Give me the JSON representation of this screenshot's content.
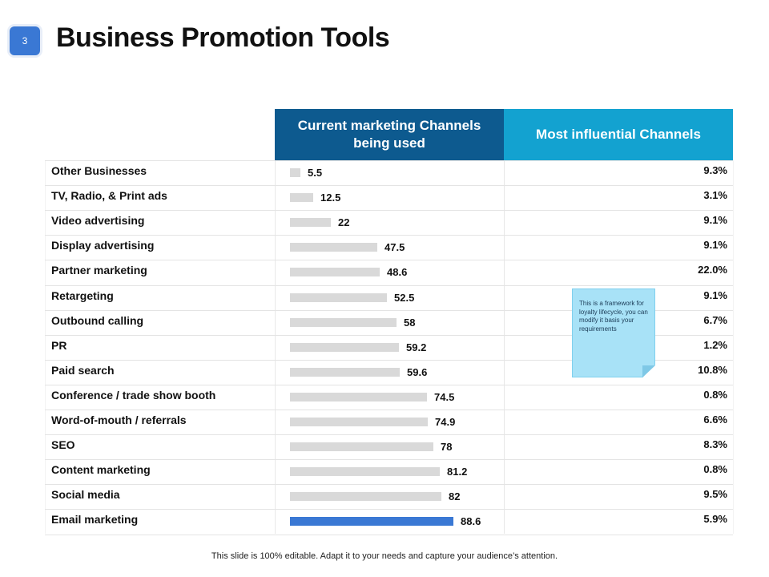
{
  "slide": {
    "page_number": "3",
    "title": "Business Promotion Tools",
    "footer": "This slide is 100% editable. Adapt it to your needs and capture your audience’s attention."
  },
  "table": {
    "header_current": "Current marketing Channels being used",
    "header_influential": "Most influential Channels"
  },
  "note": {
    "text": "This is a framework for loyalty lifecycle, you can modify it basis your requirements",
    "color": "#a8e2f7"
  },
  "colors": {
    "header_dark": "#0d5a8f",
    "header_light": "#13a2d0",
    "bar_default": "#d9d9d9",
    "bar_highlight": "#3a78d4"
  },
  "chart_data": {
    "type": "bar",
    "orientation": "horizontal",
    "categories": [
      "Other Businesses",
      "TV, Radio, & Print ads",
      "Video advertising",
      "Display advertising",
      "Partner marketing",
      "Retargeting",
      "Outbound calling",
      "PR",
      "Paid search",
      "Conference / trade show booth",
      "Word-of-mouth / referrals",
      "SEO",
      "Content marketing",
      "Social media",
      "Email marketing"
    ],
    "values": [
      5.5,
      12.5,
      22,
      47.5,
      48.6,
      52.5,
      58,
      59.2,
      59.6,
      74.5,
      74.9,
      78,
      81.2,
      82,
      88.6
    ],
    "value_labels": [
      "5.5",
      "12.5",
      "22",
      "47.5",
      "48.6",
      "52.5",
      "58",
      "59.2",
      "59.6",
      "74.5",
      "74.9",
      "78",
      "81.2",
      "82",
      "88.6"
    ],
    "highlight_index": 14,
    "influential": [
      "9.3%",
      "3.1%",
      "9.1%",
      "9.1%",
      "22.0%",
      "9.1%",
      "6.7%",
      "1.2%",
      "10.8%",
      "0.8%",
      "6.6%",
      "8.3%",
      "0.8%",
      "9.5%",
      "5.9%"
    ],
    "xlim": [
      0,
      100
    ],
    "grid": false,
    "legend": "none"
  }
}
